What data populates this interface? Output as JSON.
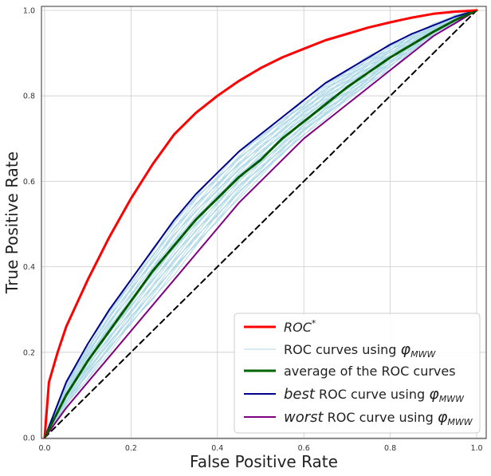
{
  "chart_data": {
    "type": "line",
    "title": "",
    "xlabel": "False Positive Rate",
    "ylabel": "True Positive Rate",
    "xlim": [
      0.0,
      1.0
    ],
    "ylim": [
      0.0,
      1.0
    ],
    "x_ticks": [
      "0.0",
      "0.2",
      "0.4",
      "0.6",
      "0.8",
      "1.0"
    ],
    "y_ticks": [
      "0.0",
      "0.2",
      "0.4",
      "0.6",
      "0.8",
      "1.0"
    ],
    "grid": true,
    "legend_position": "lower-right",
    "series": [
      {
        "name": "ROC*",
        "color": "#ff0000",
        "style": "solid-thick",
        "x": [
          0.0,
          0.01,
          0.03,
          0.05,
          0.1,
          0.15,
          0.2,
          0.25,
          0.3,
          0.35,
          0.4,
          0.45,
          0.5,
          0.55,
          0.6,
          0.65,
          0.7,
          0.75,
          0.8,
          0.85,
          0.9,
          0.95,
          1.0
        ],
        "y": [
          0.0,
          0.13,
          0.2,
          0.26,
          0.37,
          0.47,
          0.56,
          0.64,
          0.71,
          0.76,
          0.8,
          0.835,
          0.865,
          0.89,
          0.91,
          0.93,
          0.945,
          0.96,
          0.972,
          0.983,
          0.992,
          0.997,
          1.0
        ]
      },
      {
        "name": "ROC curves using φ_MWW",
        "color": "#add8e6",
        "style": "thin-band"
      },
      {
        "name": "average of the ROC curves",
        "color": "#006400",
        "style": "solid-thick",
        "x": [
          0.0,
          0.05,
          0.1,
          0.15,
          0.2,
          0.25,
          0.3,
          0.35,
          0.4,
          0.45,
          0.5,
          0.55,
          0.6,
          0.65,
          0.7,
          0.75,
          0.8,
          0.85,
          0.9,
          0.95,
          1.0
        ],
        "y": [
          0.0,
          0.1,
          0.18,
          0.25,
          0.32,
          0.39,
          0.45,
          0.51,
          0.56,
          0.61,
          0.65,
          0.7,
          0.74,
          0.78,
          0.82,
          0.855,
          0.89,
          0.92,
          0.95,
          0.977,
          1.0
        ]
      },
      {
        "name": "best ROC curve using φ_MWW",
        "color": "#00008b",
        "style": "solid",
        "x": [
          0.0,
          0.05,
          0.1,
          0.15,
          0.2,
          0.25,
          0.3,
          0.35,
          0.4,
          0.45,
          0.5,
          0.55,
          0.6,
          0.65,
          0.7,
          0.75,
          0.8,
          0.85,
          0.9,
          0.95,
          1.0
        ],
        "y": [
          0.0,
          0.13,
          0.22,
          0.3,
          0.37,
          0.44,
          0.51,
          0.57,
          0.62,
          0.67,
          0.71,
          0.75,
          0.79,
          0.83,
          0.86,
          0.89,
          0.92,
          0.945,
          0.965,
          0.985,
          1.0
        ]
      },
      {
        "name": "worst ROC curve using φ_MWW",
        "color": "#800080",
        "style": "solid",
        "x": [
          0.0,
          0.05,
          0.1,
          0.15,
          0.2,
          0.25,
          0.3,
          0.35,
          0.4,
          0.45,
          0.5,
          0.55,
          0.6,
          0.65,
          0.7,
          0.75,
          0.8,
          0.85,
          0.9,
          0.95,
          1.0
        ],
        "y": [
          0.0,
          0.07,
          0.13,
          0.19,
          0.25,
          0.31,
          0.37,
          0.43,
          0.49,
          0.55,
          0.6,
          0.65,
          0.7,
          0.74,
          0.78,
          0.82,
          0.86,
          0.9,
          0.94,
          0.97,
          1.0
        ]
      },
      {
        "name": "chance diagonal",
        "color": "#000000",
        "style": "dashed",
        "x": [
          0.0,
          1.0
        ],
        "y": [
          0.0,
          1.0
        ]
      }
    ]
  },
  "legend": {
    "roc_star": "ROC",
    "roc_star_sup": "*",
    "curves_prefix": "ROC curves using ",
    "average": "average of the ROC curves",
    "best_word": "best",
    "best_rest": " ROC curve using ",
    "worst_word": "worst",
    "worst_rest": " ROC curve using ",
    "phi": "φ",
    "phi_sub": "MWW"
  }
}
